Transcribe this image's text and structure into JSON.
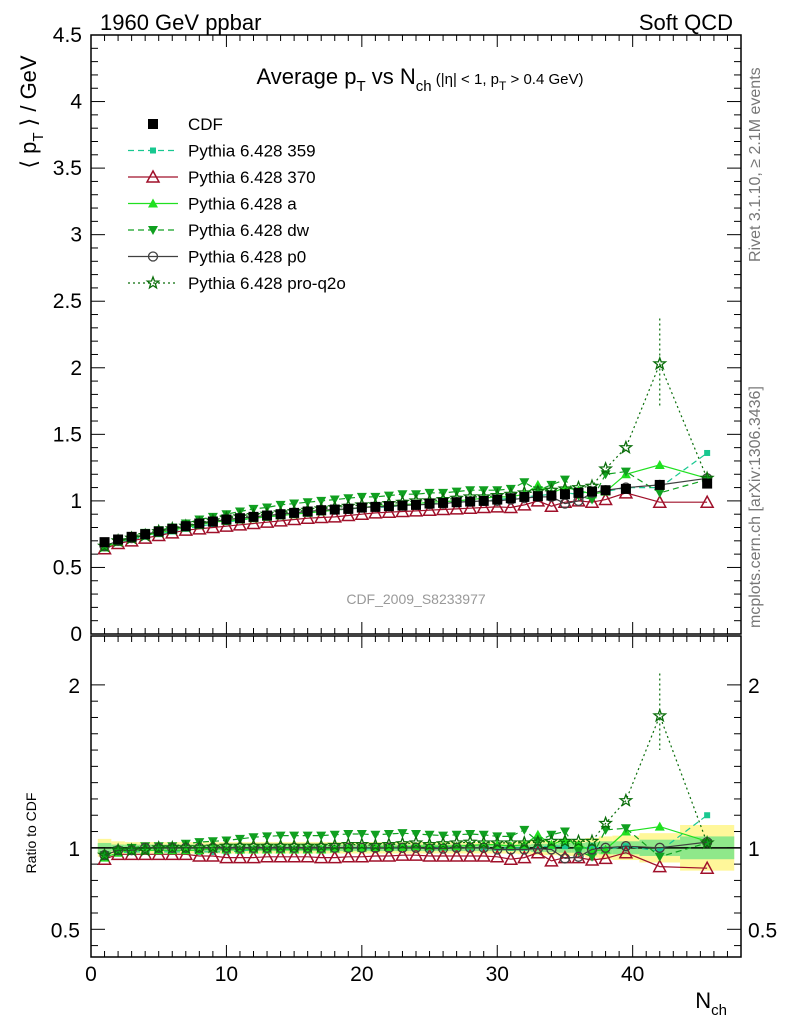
{
  "header": {
    "left": "1960 GeV ppbar",
    "right": "Soft QCD"
  },
  "side_labels": {
    "rivet": "Rivet 3.1.10, ≥ 2.1M events",
    "mcplots": "mcplots.cern.ch [arXiv:1306.3436]"
  },
  "watermark": "CDF_2009_S8233977",
  "chart_data": [
    {
      "type": "scatter",
      "title": "Average pT vs Nch (|η| < 1, pT > 0.4 GeV)",
      "xlabel": "Nch",
      "ylabel": "⟨ pT ⟩ / GeV",
      "xlim": [
        0,
        48
      ],
      "ylim": [
        0,
        4.5
      ],
      "yticks": [
        "0",
        "0.5",
        "1",
        "1.5",
        "2",
        "2.5",
        "3",
        "3.5",
        "4",
        "4.5"
      ],
      "legend_position": "top-left",
      "x": [
        1,
        2,
        3,
        4,
        5,
        6,
        7,
        8,
        9,
        10,
        11,
        12,
        13,
        14,
        15,
        16,
        17,
        18,
        19,
        20,
        21,
        22,
        23,
        24,
        25,
        26,
        27,
        28,
        29,
        30,
        31,
        32,
        33,
        34,
        35,
        36,
        37,
        38,
        39.5,
        42,
        45.5
      ],
      "series": [
        {
          "name": "CDF",
          "color": "#000000",
          "marker": "square",
          "values": [
            0.69,
            0.71,
            0.73,
            0.75,
            0.77,
            0.79,
            0.81,
            0.83,
            0.845,
            0.86,
            0.87,
            0.88,
            0.89,
            0.9,
            0.91,
            0.92,
            0.93,
            0.935,
            0.94,
            0.95,
            0.955,
            0.96,
            0.965,
            0.97,
            0.98,
            0.985,
            0.99,
            0.995,
            1.0,
            1.01,
            1.02,
            1.03,
            1.035,
            1.04,
            1.05,
            1.06,
            1.07,
            1.08,
            1.09,
            1.12,
            1.13
          ]
        },
        {
          "name": "Pythia 6.428 359",
          "color": "#18c890",
          "marker": "square-small",
          "dash": "dashed",
          "values": [
            0.65,
            0.69,
            0.71,
            0.73,
            0.75,
            0.77,
            0.79,
            0.81,
            0.825,
            0.84,
            0.855,
            0.87,
            0.88,
            0.89,
            0.9,
            0.91,
            0.92,
            0.93,
            0.94,
            0.945,
            0.95,
            0.955,
            0.965,
            0.97,
            0.975,
            0.985,
            0.99,
            0.995,
            1.0,
            1.01,
            1.02,
            1.03,
            1.04,
            1.05,
            1.06,
            1.05,
            1.08,
            1.07,
            1.1,
            1.1,
            1.36
          ]
        },
        {
          "name": "Pythia 6.428 370",
          "color": "#a0102a",
          "marker": "triangle-open",
          "dash": "solid",
          "values": [
            0.64,
            0.68,
            0.7,
            0.72,
            0.74,
            0.76,
            0.78,
            0.79,
            0.8,
            0.81,
            0.82,
            0.83,
            0.84,
            0.85,
            0.86,
            0.87,
            0.875,
            0.88,
            0.89,
            0.9,
            0.91,
            0.915,
            0.92,
            0.925,
            0.93,
            0.935,
            0.94,
            0.945,
            0.95,
            0.955,
            0.95,
            0.97,
            1.0,
            0.96,
            0.99,
            1.0,
            0.99,
            1.01,
            1.06,
            0.99,
            0.99
          ]
        },
        {
          "name": "Pythia 6.428 a",
          "color": "#20e020",
          "marker": "triangle",
          "dash": "solid",
          "values": [
            0.65,
            0.69,
            0.72,
            0.74,
            0.76,
            0.78,
            0.8,
            0.82,
            0.84,
            0.85,
            0.86,
            0.87,
            0.88,
            0.89,
            0.9,
            0.91,
            0.92,
            0.93,
            0.94,
            0.95,
            0.96,
            0.965,
            0.97,
            0.98,
            0.99,
            0.995,
            1.0,
            1.01,
            1.02,
            1.03,
            1.03,
            1.05,
            1.12,
            1.06,
            1.1,
            1.08,
            1.05,
            1.07,
            1.2,
            1.27,
            1.17
          ]
        },
        {
          "name": "Pythia 6.428 dw",
          "color": "#10a020",
          "marker": "triangle-down",
          "dash": "dashed",
          "values": [
            0.66,
            0.7,
            0.73,
            0.76,
            0.78,
            0.8,
            0.83,
            0.86,
            0.88,
            0.9,
            0.92,
            0.94,
            0.95,
            0.97,
            0.98,
            0.99,
            1.0,
            1.01,
            1.02,
            1.03,
            1.03,
            1.04,
            1.05,
            1.05,
            1.06,
            1.06,
            1.07,
            1.08,
            1.08,
            1.08,
            1.09,
            1.14,
            1.08,
            1.12,
            1.16,
            1.04,
            1.01,
            1.2,
            1.22,
            1.06,
            1.16
          ]
        },
        {
          "name": "Pythia 6.428 p0",
          "color": "#404040",
          "marker": "circle-open",
          "dash": "solid",
          "values": [
            0.66,
            0.7,
            0.72,
            0.75,
            0.77,
            0.79,
            0.81,
            0.83,
            0.845,
            0.86,
            0.87,
            0.88,
            0.89,
            0.9,
            0.91,
            0.92,
            0.93,
            0.935,
            0.94,
            0.95,
            0.955,
            0.96,
            0.965,
            0.97,
            0.975,
            0.98,
            0.99,
            0.995,
            1.0,
            1.0,
            1.01,
            1.02,
            1.03,
            1.03,
            0.98,
            1.0,
            1.06,
            1.08,
            1.1,
            1.12,
            1.17
          ]
        },
        {
          "name": "Pythia 6.428 pro-q2o",
          "color": "#0a6e0a",
          "marker": "star",
          "dash": "dotted",
          "values": [
            0.66,
            0.7,
            0.72,
            0.74,
            0.77,
            0.79,
            0.81,
            0.83,
            0.85,
            0.87,
            0.88,
            0.89,
            0.9,
            0.91,
            0.92,
            0.93,
            0.94,
            0.95,
            0.96,
            0.97,
            0.97,
            0.98,
            0.99,
            1.0,
            1.0,
            1.01,
            1.02,
            1.03,
            1.03,
            1.04,
            1.05,
            1.06,
            1.07,
            1.08,
            1.09,
            1.1,
            1.11,
            1.24,
            1.4,
            2.03,
            1.17
          ]
        }
      ]
    },
    {
      "type": "scatter",
      "title": "",
      "xlabel": "Nch",
      "ylabel": "Ratio to CDF",
      "xlim": [
        0,
        48
      ],
      "ylim": [
        0.33,
        2.3
      ],
      "xticks": [
        "0",
        "10",
        "20",
        "30",
        "40"
      ],
      "yticks": [
        "0.5",
        "1",
        "2"
      ],
      "x": [
        1,
        2,
        3,
        4,
        5,
        6,
        7,
        8,
        9,
        10,
        11,
        12,
        13,
        14,
        15,
        16,
        17,
        18,
        19,
        20,
        21,
        22,
        23,
        24,
        25,
        26,
        27,
        28,
        29,
        30,
        31,
        32,
        33,
        34,
        35,
        36,
        37,
        38,
        39.5,
        42,
        45.5
      ],
      "band_edges": [
        0.5,
        1.5,
        2.5,
        3.5,
        4.5,
        5.5,
        6.5,
        7.5,
        8.5,
        9.5,
        10.5,
        11.5,
        12.5,
        13.5,
        14.5,
        15.5,
        16.5,
        17.5,
        18.5,
        19.5,
        20.5,
        21.5,
        22.5,
        23.5,
        24.5,
        25.5,
        26.5,
        27.5,
        28.5,
        29.5,
        30.5,
        31.5,
        32.5,
        33.5,
        34.5,
        35.5,
        36.5,
        37.5,
        38.5,
        40.5,
        43.5,
        47.5
      ],
      "band_inner": [
        0.03,
        0.02,
        0.02,
        0.02,
        0.02,
        0.02,
        0.02,
        0.02,
        0.02,
        0.02,
        0.02,
        0.02,
        0.02,
        0.02,
        0.02,
        0.02,
        0.02,
        0.02,
        0.02,
        0.02,
        0.02,
        0.02,
        0.02,
        0.02,
        0.02,
        0.02,
        0.02,
        0.02,
        0.02,
        0.02,
        0.02,
        0.02,
        0.025,
        0.025,
        0.03,
        0.03,
        0.035,
        0.04,
        0.04,
        0.05,
        0.07
      ],
      "band_outer": [
        0.055,
        0.04,
        0.035,
        0.035,
        0.035,
        0.035,
        0.035,
        0.035,
        0.035,
        0.035,
        0.035,
        0.035,
        0.035,
        0.035,
        0.035,
        0.035,
        0.035,
        0.035,
        0.035,
        0.035,
        0.035,
        0.035,
        0.035,
        0.035,
        0.035,
        0.035,
        0.035,
        0.035,
        0.035,
        0.035,
        0.035,
        0.04,
        0.045,
        0.045,
        0.05,
        0.05,
        0.06,
        0.07,
        0.075,
        0.09,
        0.14
      ],
      "series": [
        {
          "name": "Pythia 6.428 359",
          "values": [
            0.95,
            0.97,
            0.975,
            0.975,
            0.975,
            0.975,
            0.975,
            0.975,
            0.975,
            0.975,
            0.98,
            0.99,
            0.99,
            0.99,
            0.99,
            0.99,
            0.99,
            0.995,
            1.0,
            0.995,
            0.995,
            0.995,
            1.0,
            1.0,
            0.995,
            1.0,
            1.0,
            1.0,
            1.0,
            1.0,
            1.0,
            1.0,
            1.005,
            1.01,
            1.01,
            0.99,
            1.01,
            0.99,
            1.01,
            0.98,
            1.2
          ]
        },
        {
          "name": "Pythia 6.428 370",
          "values": [
            0.93,
            0.96,
            0.96,
            0.96,
            0.96,
            0.96,
            0.96,
            0.95,
            0.95,
            0.94,
            0.94,
            0.94,
            0.945,
            0.945,
            0.945,
            0.945,
            0.94,
            0.94,
            0.945,
            0.945,
            0.95,
            0.95,
            0.955,
            0.955,
            0.95,
            0.95,
            0.95,
            0.95,
            0.95,
            0.945,
            0.93,
            0.94,
            0.97,
            0.92,
            0.94,
            0.94,
            0.925,
            0.935,
            0.97,
            0.885,
            0.875
          ]
        },
        {
          "name": "Pythia 6.428 a",
          "values": [
            0.94,
            0.97,
            0.985,
            0.985,
            0.985,
            0.985,
            0.985,
            0.985,
            0.995,
            0.99,
            0.99,
            0.99,
            0.99,
            0.99,
            0.99,
            0.99,
            0.99,
            0.995,
            1.0,
            1.0,
            1.005,
            1.005,
            1.005,
            1.01,
            1.01,
            1.01,
            1.01,
            1.015,
            1.02,
            1.02,
            1.01,
            1.02,
            1.08,
            1.02,
            1.05,
            1.02,
            0.98,
            0.99,
            1.1,
            1.13,
            1.04
          ]
        },
        {
          "name": "Pythia 6.428 dw",
          "values": [
            0.955,
            0.985,
            1.0,
            1.01,
            1.01,
            1.01,
            1.025,
            1.035,
            1.04,
            1.045,
            1.055,
            1.065,
            1.07,
            1.075,
            1.075,
            1.075,
            1.075,
            1.08,
            1.085,
            1.085,
            1.08,
            1.085,
            1.09,
            1.085,
            1.08,
            1.075,
            1.08,
            1.085,
            1.08,
            1.07,
            1.07,
            1.11,
            1.04,
            1.08,
            1.1,
            0.98,
            0.945,
            1.11,
            1.12,
            0.945,
            1.03
          ]
        },
        {
          "name": "Pythia 6.428 p0",
          "values": [
            0.955,
            0.985,
            0.985,
            1.0,
            1.0,
            1.0,
            1.0,
            1.0,
            1.0,
            1.0,
            1.0,
            1.0,
            1.0,
            1.0,
            1.0,
            1.0,
            1.0,
            1.0,
            1.0,
            1.0,
            1.0,
            1.0,
            1.0,
            1.0,
            0.995,
            0.995,
            1.0,
            1.0,
            1.0,
            0.99,
            0.99,
            0.99,
            0.995,
            0.99,
            0.935,
            0.945,
            0.99,
            1.0,
            1.01,
            1.0,
            1.035
          ]
        },
        {
          "name": "Pythia 6.428 pro-q2o",
          "values": [
            0.955,
            0.985,
            0.985,
            0.985,
            1.0,
            1.0,
            1.0,
            1.0,
            1.005,
            1.01,
            1.01,
            1.01,
            1.01,
            1.01,
            1.01,
            1.01,
            1.01,
            1.015,
            1.02,
            1.02,
            1.015,
            1.02,
            1.025,
            1.03,
            1.02,
            1.025,
            1.03,
            1.035,
            1.03,
            1.03,
            1.03,
            1.03,
            1.035,
            1.04,
            1.04,
            1.04,
            1.04,
            1.15,
            1.29,
            1.81,
            1.03
          ]
        }
      ]
    }
  ]
}
